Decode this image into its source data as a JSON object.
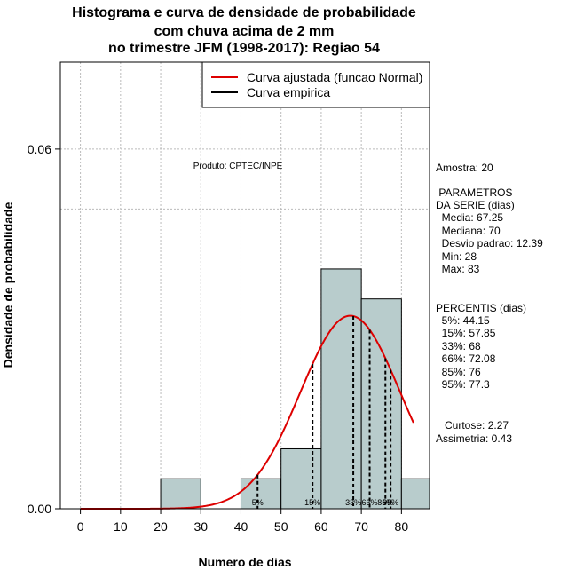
{
  "chart_data": {
    "type": "bar",
    "title": [
      "Histograma e curva de densidade de probabilidade",
      "com chuva acima de 2 mm",
      "no trimestre JFM (1998-2017): Regiao 54"
    ],
    "xlabel": "Numero de dias",
    "ylabel": "Densidade de probabilidade",
    "xlim": [
      -5,
      87
    ],
    "ylim": [
      0,
      0.0745
    ],
    "x_ticks": [
      0,
      10,
      20,
      30,
      40,
      50,
      60,
      70,
      80
    ],
    "y_ticks": [
      0.0,
      0.06
    ],
    "y_tick_labels": [
      "0.00",
      "0.06"
    ],
    "grid": true,
    "grid_y_extra": [
      0.05
    ],
    "bins": [
      {
        "start": 20,
        "end": 30,
        "density": 0.005
      },
      {
        "start": 30,
        "end": 40,
        "density": 0.0
      },
      {
        "start": 40,
        "end": 50,
        "density": 0.005
      },
      {
        "start": 50,
        "end": 60,
        "density": 0.01
      },
      {
        "start": 60,
        "end": 70,
        "density": 0.04
      },
      {
        "start": 70,
        "end": 80,
        "density": 0.035
      },
      {
        "start": 80,
        "end": 87,
        "density": 0.005
      }
    ],
    "bar_color": "#b8cccc",
    "normal_curve": {
      "mean": 67.25,
      "sd": 12.39,
      "color": "#dd0000",
      "x_end": 83
    },
    "percentile_lines": [
      {
        "label": "5%",
        "x": 44.15
      },
      {
        "label": "15%",
        "x": 57.85
      },
      {
        "label": "33%",
        "x": 68
      },
      {
        "label": "66%",
        "x": 72.08
      },
      {
        "label": "85%",
        "x": 76
      },
      {
        "label": "95%",
        "x": 77.3
      }
    ],
    "legend": {
      "position": "top-right",
      "entries": [
        {
          "label": "Curva ajustada (funcao Normal)",
          "color": "#dd0000"
        },
        {
          "label": "Curva empirica",
          "color": "#000000"
        }
      ]
    },
    "annotation": "Produto: CPTEC/INPE"
  },
  "stats": {
    "amostra": "Amostra: 20",
    "parametros_title_1": " PARAMETROS",
    "parametros_title_2": "DA SERIE (dias)",
    "media": "  Media: 67.25",
    "mediana": "  Mediana: 70",
    "desvio": "  Desvio padrao: 12.39",
    "min": "  Min: 28",
    "max": "  Max: 83",
    "percentis_title": "PERCENTIS (dias)",
    "p5": "  5%: 44.15",
    "p15": "  15%: 57.85",
    "p33": "  33%: 68",
    "p66": "  66%: 72.08",
    "p85": "  85%: 76",
    "p95": "  95%: 77.3",
    "curtose": "   Curtose: 2.27",
    "assimetria": "Assimetria: 0.43"
  }
}
